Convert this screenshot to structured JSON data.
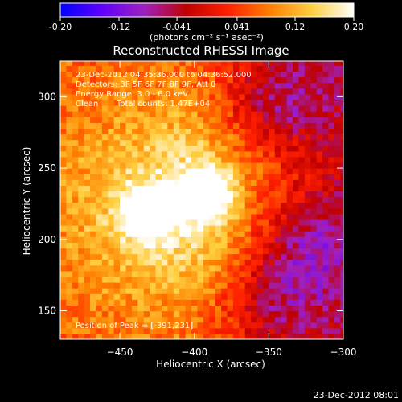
{
  "chart_data": {
    "type": "heatmap",
    "title": "Reconstructed RHESSI Image",
    "xlabel": "Heliocentric X (arcsec)",
    "ylabel": "Heliocentric Y (arcsec)",
    "xlim": [
      -490,
      -300
    ],
    "ylim": [
      130,
      325
    ],
    "x_ticks": [
      -450,
      -400,
      -350,
      -300
    ],
    "y_ticks": [
      150,
      200,
      250,
      300
    ],
    "colorbar": {
      "range": [
        -0.2,
        0.2
      ],
      "ticks": [
        "-0.20",
        "-0.12",
        "-0.041",
        "0.041",
        "0.12",
        "0.20"
      ],
      "tick_values": [
        -0.2,
        -0.12,
        -0.041,
        0.041,
        0.12,
        0.2
      ],
      "units_label": "(photons cm⁻² s⁻¹ asec⁻²)",
      "colors": [
        "#0000ff",
        "#6000ff",
        "#a020c0",
        "#c00000",
        "#ff2000",
        "#ff8000",
        "#ffd040",
        "#ffffff"
      ]
    },
    "annotations": {
      "time_range": "23-Dec-2012 04:35:36.000 to 04:36:52.000",
      "detectors": "Detectors: 3F 5F 6F 7F 8F 9F, Att 0",
      "energy": "Energy Range: 3.0 - 6.0 keV",
      "method": "Clean",
      "counts": "Total counts: 1.47E+04",
      "peak": "Position of Peak = [-391,231]"
    },
    "sources": [
      {
        "x": -393,
        "y": 232,
        "peak": 0.2
      },
      {
        "x": -431,
        "y": 218,
        "peak": 0.18
      }
    ],
    "negative_regions": [
      {
        "x": -345,
        "y": 298,
        "value": -0.09
      },
      {
        "x": -325,
        "y": 195,
        "value": -0.08
      },
      {
        "x": -345,
        "y": 155,
        "value": -0.07
      }
    ]
  },
  "footer_timestamp": "23-Dec-2012 08:01"
}
